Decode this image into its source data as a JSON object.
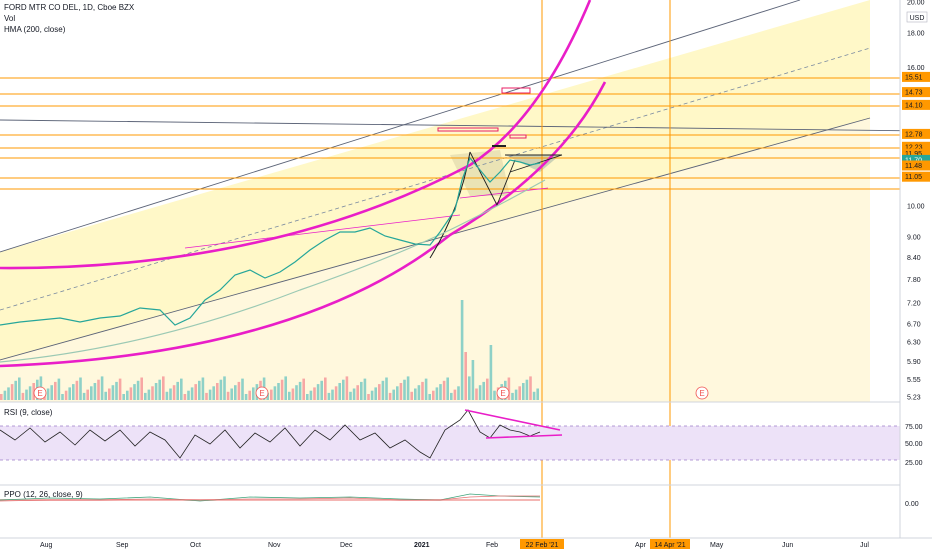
{
  "header": {
    "symbol_line": "FORD MTR CO DEL, 1D, Cboe BZX",
    "vol_label": "Vol",
    "hma_label": "HMA (200, close)",
    "currency": "USD"
  },
  "rsi_panel": {
    "label": "RSI (9, close)",
    "ticks": [
      "75.00",
      "50.00",
      "25.00"
    ]
  },
  "ppo_panel": {
    "label": "PPO (12, 26, close, 9)",
    "tick": "0.00"
  },
  "x_axis": {
    "months": [
      "Aug",
      "Sep",
      "Oct",
      "Nov",
      "Dec",
      "2021",
      "Feb",
      "Apr",
      "May",
      "Jun",
      "Jul"
    ],
    "marker_dates": [
      "22 Feb '21",
      "14 Apr '21"
    ]
  },
  "earnings_marker": "E",
  "colors": {
    "up": "#26a69a",
    "down": "#ef5350",
    "trend_band": "#fff59d",
    "magenta": "#e91ec8",
    "orange_level": "#ff9800",
    "rsi_band": "#ede2f8",
    "hma": "#9bc9b4"
  },
  "chart_data": {
    "type": "candlestick",
    "title": "FORD MTR CO DEL, 1D, Cboe BZX",
    "y_scale": "log",
    "y_ticks": [
      5.23,
      5.55,
      5.9,
      6.3,
      6.7,
      7.2,
      7.8,
      8.4,
      9.0,
      10.0,
      16.0,
      18.0,
      20.0
    ],
    "price_levels": [
      15.51,
      14.73,
      14.1,
      12.78,
      12.23,
      11.95,
      11.7,
      11.48,
      11.05
    ],
    "current_price": 11.7,
    "vertical_markers": [
      "22 Feb '21",
      "14 Apr '21"
    ],
    "close_series": [
      {
        "date": "Jul 15",
        "close": 6.75
      },
      {
        "date": "Jul 31",
        "close": 6.85
      },
      {
        "date": "Aug 15",
        "close": 6.95
      },
      {
        "date": "Aug 31",
        "close": 6.75
      },
      {
        "date": "Sep 15",
        "close": 7.0
      },
      {
        "date": "Sep 30",
        "close": 6.7
      },
      {
        "date": "Oct 15",
        "close": 7.5
      },
      {
        "date": "Oct 31",
        "close": 7.7
      },
      {
        "date": "Nov 15",
        "close": 8.3
      },
      {
        "date": "Nov 30",
        "close": 8.9
      },
      {
        "date": "Dec 15",
        "close": 9.0
      },
      {
        "date": "Dec 31",
        "close": 8.9
      },
      {
        "date": "Jan 15",
        "close": 11.2
      },
      {
        "date": "Jan 31",
        "close": 11.2
      },
      {
        "date": "Feb 15",
        "close": 12.1
      },
      {
        "date": "Feb 22",
        "close": 11.7
      }
    ]
  }
}
